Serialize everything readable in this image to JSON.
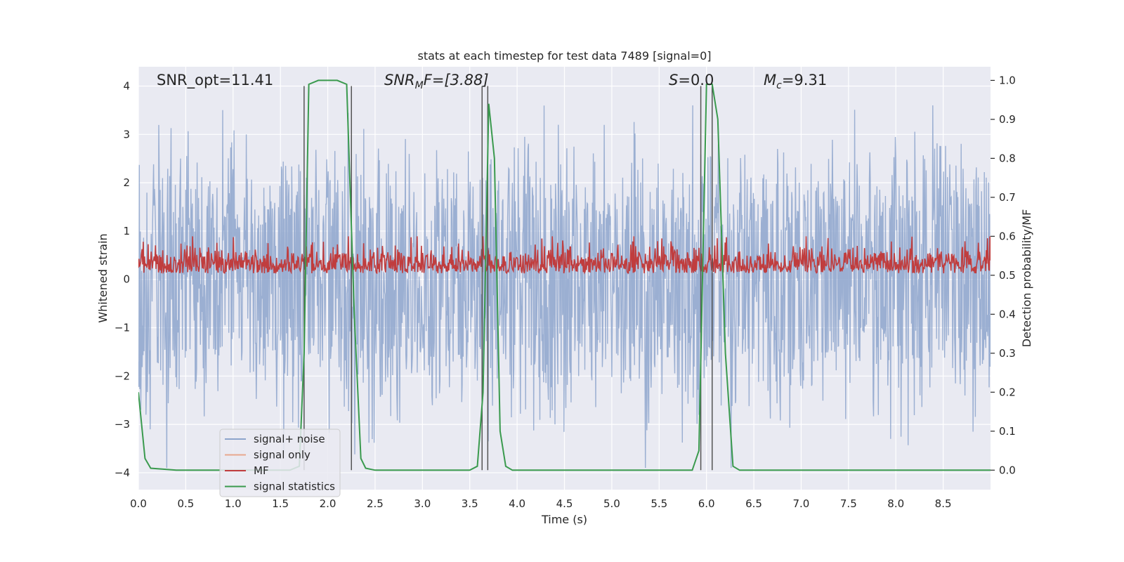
{
  "chart_data": {
    "type": "line",
    "title": "stats at each timestep for test data 7489 [signal=0]",
    "xlabel": "Time (s)",
    "ylabel_left": "Whitened strain",
    "ylabel_right": "Detection probability/MF",
    "xlim": [
      0,
      9
    ],
    "ylim_left": [
      -4.35,
      4.4
    ],
    "ylim_right": [
      -0.05,
      1.035
    ],
    "x_ticks": [
      0.0,
      0.5,
      1.0,
      1.5,
      2.0,
      2.5,
      3.0,
      3.5,
      4.0,
      4.5,
      5.0,
      5.5,
      6.0,
      6.5,
      7.0,
      7.5,
      8.0,
      8.5
    ],
    "x_tick_labels": [
      "0.0",
      "0.5",
      "1.0",
      "1.5",
      "2.0",
      "2.5",
      "3.0",
      "3.5",
      "4.0",
      "4.5",
      "5.0",
      "5.5",
      "6.0",
      "6.5",
      "7.0",
      "7.5",
      "8.0",
      "8.5"
    ],
    "y_left_ticks": [
      4,
      3,
      2,
      1,
      0,
      -1,
      -2,
      -3,
      -4
    ],
    "y_left_tick_labels": [
      "4",
      "3",
      "2",
      "1",
      "0",
      "−1",
      "−2",
      "−3",
      "−4"
    ],
    "y_right_ticks": [
      1.0,
      0.9,
      0.8,
      0.7,
      0.6,
      0.5,
      0.4,
      0.3,
      0.2,
      0.1,
      0.0
    ],
    "y_right_tick_labels": [
      "1.0",
      "0.9",
      "0.8",
      "0.7",
      "0.6",
      "0.5",
      "0.4",
      "0.3",
      "0.2",
      "0.1",
      "0.0"
    ],
    "annotations": {
      "snr_opt": "SNR_opt=11.41",
      "snr_mf_main": "SNR",
      "snr_mf_sub": "M",
      "snr_mf_rest": "F=[3.88]",
      "s_italic": "S",
      "s_rest": "=0.0",
      "mc_main": "M",
      "mc_sub": "c",
      "mc_rest": "=9.31"
    },
    "legend": {
      "placement": "lower-left",
      "entries": [
        {
          "label": "signal+ noise",
          "color": "#8da4cc"
        },
        {
          "label": "signal only",
          "color": "#e8a88e"
        },
        {
          "label": "MF",
          "color": "#c03d3e"
        },
        {
          "label": "signal statistics",
          "color": "#3a9a4e"
        }
      ]
    },
    "series": [
      {
        "name": "signal+ noise",
        "axis": "left",
        "style": "dense noise band",
        "color": "#8da4cc",
        "approx_range": [
          -3.9,
          3.6
        ]
      },
      {
        "name": "signal only",
        "axis": "left",
        "style": "flat",
        "color": "#e8a88e",
        "values": []
      },
      {
        "name": "MF",
        "axis": "right",
        "style": "dense band",
        "color": "#c03d3e",
        "approx_range": [
          0.5,
          0.6
        ]
      },
      {
        "name": "signal statistics",
        "axis": "right",
        "color": "#3a9a4e",
        "x": [
          0.0,
          0.07,
          0.13,
          0.4,
          1.6,
          1.7,
          1.75,
          1.8,
          1.9,
          2.1,
          2.2,
          2.28,
          2.35,
          2.4,
          2.5,
          3.5,
          3.58,
          3.64,
          3.7,
          3.76,
          3.82,
          3.88,
          3.95,
          5.85,
          5.92,
          6.0,
          6.06,
          6.12,
          6.2,
          6.28,
          6.35,
          9.0
        ],
        "y": [
          0.2,
          0.03,
          0.005,
          0.0,
          0.0,
          0.01,
          0.3,
          0.99,
          1.0,
          1.0,
          0.99,
          0.4,
          0.03,
          0.005,
          0.0,
          0.0,
          0.01,
          0.2,
          0.94,
          0.8,
          0.1,
          0.01,
          0.0,
          0.0,
          0.05,
          0.99,
          0.99,
          0.9,
          0.3,
          0.01,
          0.0,
          0.0
        ]
      }
    ],
    "vertical_markers_s": [
      1.75,
      2.25,
      3.63,
      3.69,
      5.94,
      6.06
    ],
    "vertical_marker_top_strain": 4,
    "vertical_marker_bottom_prob": 0.0,
    "colors": {
      "plot_bg": "#e9eaf2",
      "grid": "#ffffff",
      "marker_line": "#555555"
    }
  }
}
